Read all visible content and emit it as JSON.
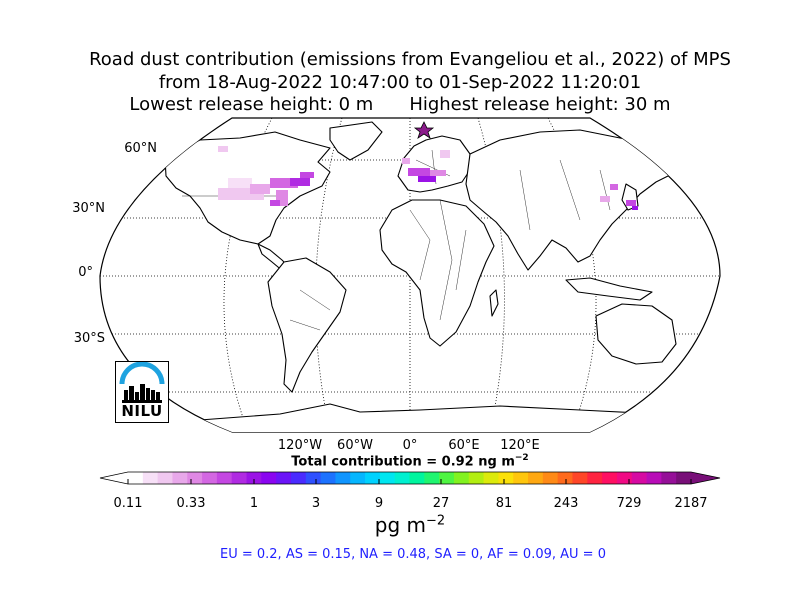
{
  "title": {
    "line1": "Road dust contribution (emissions from Evangeliou et al., 2022) of MPS",
    "line2": "from 18-Aug-2022 10:47:00 to 01-Sep-2022 11:20:01",
    "line3_left": "Lowest release height: 0 m",
    "line3_right": "Highest release height: 30 m"
  },
  "map": {
    "projection": "robinson",
    "lat_labels": [
      "60°N",
      "30°N",
      "0°",
      "30°S"
    ],
    "lon_labels": [
      "120°W",
      "60°W",
      "0°",
      "60°E",
      "120°E"
    ],
    "release_site_marker": "star",
    "release_site_color": "#8b1a8b",
    "land_color": "#ffffff",
    "coastline_color": "#000000",
    "grid_style": "dotted"
  },
  "logo": {
    "text": "NILU",
    "arc_color": "#1fa3e0"
  },
  "total_contribution": "Total contribution = 0.92 ng m",
  "total_contribution_sup": "−2",
  "colorbar": {
    "tick_labels": [
      "0.11",
      "0.33",
      "1",
      "3",
      "9",
      "27",
      "81",
      "243",
      "729",
      "2187"
    ],
    "unit_base": "pg m",
    "unit_sup": "−2",
    "colors": [
      "#ffffff",
      "#f7e0f7",
      "#f0c8f0",
      "#e8a8ea",
      "#df88e4",
      "#d367e2",
      "#c447e2",
      "#b02be2",
      "#9b13e6",
      "#8a05f0",
      "#6b14f7",
      "#4a2bff",
      "#2f50ff",
      "#1c72ff",
      "#1095ff",
      "#06b6ff",
      "#00d2ff",
      "#00e6f0",
      "#00f0d0",
      "#00f59e",
      "#20f570",
      "#4ff542",
      "#82f220",
      "#b2ee12",
      "#dcea0c",
      "#fbe10a",
      "#ffc60e",
      "#ffa812",
      "#ff8a17",
      "#ff6a1d",
      "#ff4628",
      "#ff2440",
      "#ff0f62",
      "#f00a84",
      "#d60aa2",
      "#b80cb7",
      "#951098",
      "#780f78"
    ]
  },
  "region_summary": "EU = 0.2,  AS = 0.15,  NA = 0.48,  SA = 0,  AF = 0.09,  AU = 0"
}
